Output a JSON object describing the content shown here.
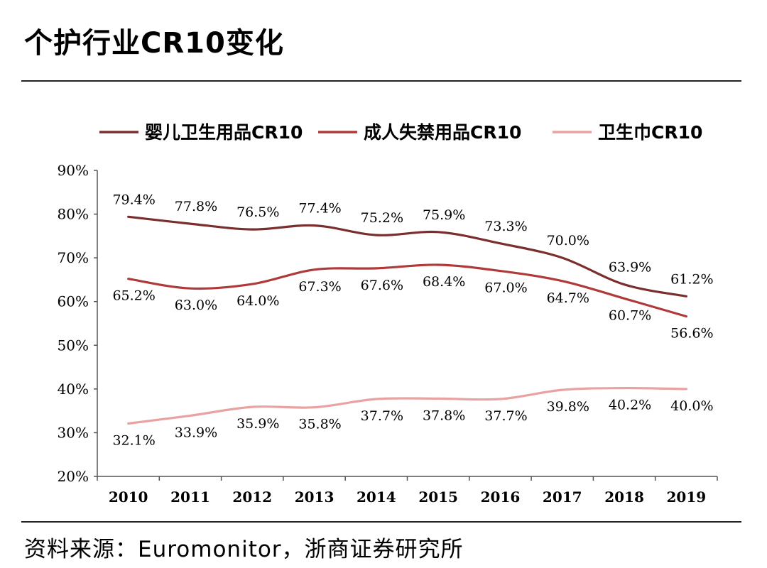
{
  "header": {
    "title": "个护行业CR10变化"
  },
  "footer": {
    "source": "资料来源：Euromonitor，浙商证券研究所"
  },
  "chart_data": {
    "type": "line",
    "title": "个护行业CR10变化",
    "xlabel": "",
    "ylabel": "",
    "x": [
      "2010",
      "2011",
      "2012",
      "2013",
      "2014",
      "2015",
      "2016",
      "2017",
      "2018",
      "2019"
    ],
    "ylim": [
      20,
      90
    ],
    "yticks": [
      "20%",
      "30%",
      "40%",
      "50%",
      "60%",
      "70%",
      "80%",
      "90%"
    ],
    "grid": false,
    "legend": "top",
    "series": [
      {
        "name": "婴儿卫生用品CR10",
        "color": "#7a2e2e",
        "values": [
          79.4,
          77.8,
          76.5,
          77.4,
          75.2,
          75.9,
          73.3,
          70.0,
          63.9,
          61.2
        ],
        "labels": [
          "79.4%",
          "77.8%",
          "76.5%",
          "77.4%",
          "75.2%",
          "75.9%",
          "73.3%",
          "70.0%",
          "63.9%",
          "61.2%"
        ]
      },
      {
        "name": "成人失禁用品CR10",
        "color": "#b03a3a",
        "values": [
          65.2,
          63.0,
          64.0,
          67.3,
          67.6,
          68.4,
          67.0,
          64.7,
          60.7,
          56.6
        ],
        "labels": [
          "65.2%",
          "63.0%",
          "64.0%",
          "67.3%",
          "67.6%",
          "68.4%",
          "67.0%",
          "64.7%",
          "60.7%",
          "56.6%"
        ]
      },
      {
        "name": "卫生巾CR10",
        "color": "#e8a2a2",
        "values": [
          32.1,
          33.9,
          35.9,
          35.8,
          37.7,
          37.8,
          37.7,
          39.8,
          40.2,
          40.0
        ],
        "labels": [
          "32.1%",
          "33.9%",
          "35.9%",
          "35.8%",
          "37.7%",
          "37.8%",
          "37.7%",
          "39.8%",
          "40.2%",
          "40.0%"
        ]
      }
    ]
  }
}
